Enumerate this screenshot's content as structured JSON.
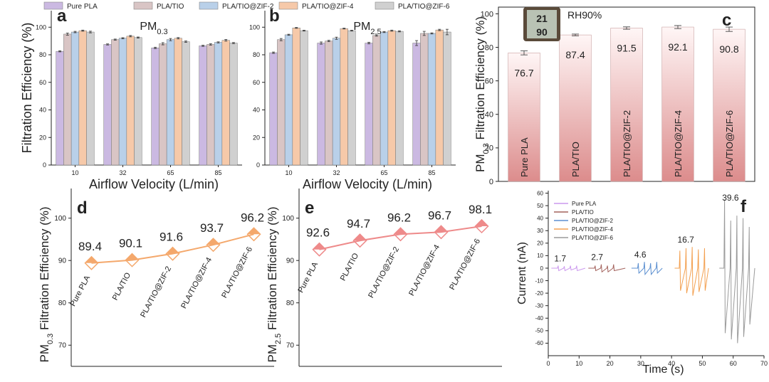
{
  "chart_data": [
    {
      "type": "bar",
      "panel": "a",
      "title": [
        "PM",
        "0.3"
      ],
      "ylabel": "Filtration Efficiency  (%)",
      "xlabel": "Airflow Velocity (L/min)",
      "categories": [
        "10",
        "32",
        "65",
        "85"
      ],
      "ylim": [
        0,
        112
      ],
      "yticks": [
        0,
        20,
        40,
        60,
        80,
        100
      ],
      "series": [
        {
          "name": "Pure PLA",
          "color": "#cbb9e2",
          "values": [
            82.5,
            87.5,
            85,
            86.5
          ],
          "errors": [
            0.4,
            0.4,
            0.5,
            0.4
          ]
        },
        {
          "name": "PLA/TIO",
          "color": "#d9c5c5",
          "values": [
            95,
            91,
            88,
            87.5
          ],
          "errors": [
            0.8,
            0.4,
            0.8,
            0.5
          ]
        },
        {
          "name": "PLA/TIO@ZIF-2",
          "color": "#b9d0e9",
          "values": [
            96.5,
            92,
            91,
            89
          ],
          "errors": [
            0.5,
            0.4,
            0.8,
            0.4
          ]
        },
        {
          "name": "PLA/TIO@ZIF-4",
          "color": "#f6c9a9",
          "values": [
            97.5,
            93.5,
            92,
            90.5
          ],
          "errors": [
            0.4,
            0.5,
            0.5,
            0.6
          ]
        },
        {
          "name": "PLA/TIO@ZIF-6",
          "color": "#d0d0d0",
          "values": [
            96.5,
            92.5,
            89.5,
            88.5
          ],
          "errors": [
            0.6,
            0.4,
            0.5,
            0.4
          ]
        }
      ]
    },
    {
      "type": "bar",
      "panel": "b",
      "title": [
        "PM",
        "2.5"
      ],
      "xlabel": "Airflow Velocity (L/min)",
      "categories": [
        "10",
        "32",
        "65",
        "85"
      ],
      "ylim": [
        0,
        112
      ],
      "yticks": [
        0,
        20,
        40,
        60,
        80,
        100
      ],
      "series": [
        {
          "color": "#cbb9e2",
          "values": [
            81.5,
            88.5,
            88.5,
            88.5
          ],
          "errors": [
            0.5,
            0.8,
            0.6,
            1.8
          ]
        },
        {
          "color": "#d9c5c5",
          "values": [
            91,
            90,
            94,
            95.5
          ],
          "errors": [
            0.8,
            0.5,
            0.5,
            1.5
          ]
        },
        {
          "color": "#b9d0e9",
          "values": [
            94.5,
            92,
            96.5,
            95.5
          ],
          "errors": [
            0.4,
            0.8,
            0.4,
            0.4
          ]
        },
        {
          "color": "#f6c9a9",
          "values": [
            99.5,
            99,
            97.5,
            98
          ],
          "errors": [
            0.3,
            0.3,
            0.4,
            0.5
          ]
        },
        {
          "color": "#d0d0d0",
          "values": [
            97.5,
            97.5,
            97,
            96.5
          ],
          "errors": [
            0.3,
            0.3,
            0.4,
            2
          ]
        }
      ]
    },
    {
      "type": "bar",
      "panel": "c",
      "annotation": "RH90%",
      "device_text": [
        "21",
        "90"
      ],
      "ylabel": [
        "PM",
        "0.3",
        " Filtration Efficiency (%)"
      ],
      "categories": [
        "Pure PLA",
        "PLA/TIO",
        "PLA/TIO@ZIF-2",
        "PLA/TIO@ZIF-4",
        "PLA/TIO@ZIF-6"
      ],
      "values": [
        76.7,
        87.4,
        91.5,
        92.1,
        90.8
      ],
      "errors": [
        1.2,
        0.5,
        0.7,
        0.9,
        1.3
      ],
      "color": "#dc8c8c",
      "ylim": [
        0,
        104
      ],
      "yticks": [
        0,
        20,
        40,
        60,
        80,
        100
      ]
    },
    {
      "type": "line",
      "panel": "d",
      "ylabel": [
        "PM",
        "0.3",
        " Filtration Efficiency  (%)"
      ],
      "categories": [
        "Pure PLA",
        "PLA/TIO",
        "PLA/TIO@ZIF-2",
        "PLA/TIO@ZIF-4",
        "PLA/TIO@ZIF-6"
      ],
      "values": [
        89.4,
        90.1,
        91.6,
        93.7,
        96.2
      ],
      "color": "#f4a86c",
      "ylim": [
        65,
        107
      ],
      "yticks": [
        70,
        80,
        90,
        100
      ]
    },
    {
      "type": "line",
      "panel": "e",
      "ylabel": [
        "PM",
        "2.5",
        " Filtration Efficiency (%)"
      ],
      "categories": [
        "Pure PLA",
        "PLA/TIO",
        "PLA/TIO@ZIF-2",
        "PLA/TIO@ZIF-4",
        "PLA/TIO@ZIF-6"
      ],
      "values": [
        92.6,
        94.7,
        96.2,
        96.7,
        98.1
      ],
      "color": "#ee8a8a",
      "ylim": [
        65,
        107
      ],
      "yticks": [
        70,
        80,
        90,
        100
      ]
    },
    {
      "type": "signal",
      "panel": "f",
      "ylabel": "Current (nA)",
      "xlabel": "Time (s)",
      "xlim": [
        0,
        70
      ],
      "xticks": [
        0,
        10,
        20,
        30,
        40,
        50,
        60,
        70
      ],
      "ylim": [
        -70,
        62
      ],
      "yticks": [
        -60,
        -50,
        -40,
        -30,
        -20,
        -10,
        0,
        10,
        20,
        30,
        40,
        50,
        60
      ],
      "series": [
        {
          "name": "Pure PLA",
          "color": "#cc99ee",
          "peak": 1.7,
          "x": [
            1,
            3,
            3.2,
            3.4,
            5,
            5.2,
            5.4,
            7,
            7.2,
            7.4,
            9,
            9.2,
            9.4,
            12
          ],
          "values": [
            0,
            0,
            2,
            -2,
            0,
            1.5,
            -2,
            0,
            2,
            -1.5,
            0,
            2,
            -2,
            0
          ]
        },
        {
          "name": "PLA/TIO",
          "color": "#a3625c",
          "peak": 2.7,
          "x": [
            13,
            15,
            15.2,
            15.4,
            17,
            17.2,
            17.4,
            19,
            19.2,
            19.4,
            21,
            21.2,
            21.4,
            25
          ],
          "values": [
            0,
            0,
            2,
            -2,
            0,
            3,
            -3,
            0,
            2,
            -3,
            0,
            3,
            -2,
            0
          ]
        },
        {
          "name": "PLA/TIO@ZIF-2",
          "color": "#5b8fd0",
          "peak": 4.6,
          "x": [
            27,
            29,
            29.2,
            29.4,
            31,
            31.2,
            31.4,
            33,
            33.2,
            33.4,
            35,
            35.2,
            35.4,
            37
          ],
          "values": [
            0,
            0,
            4,
            -4,
            0,
            5,
            -5,
            0,
            4,
            -5,
            0,
            5,
            -4,
            0
          ]
        },
        {
          "name": "PLA/TIO@ZIF-4",
          "color": "#f3a050",
          "peak": 16.7,
          "x": [
            41,
            42.5,
            42.7,
            42.9,
            44.5,
            44.7,
            44.9,
            46.5,
            46.7,
            46.9,
            48.5,
            48.7,
            48.9,
            50.5,
            50.7,
            50.9,
            52
          ],
          "values": [
            0,
            0,
            14,
            -18,
            0,
            16,
            -20,
            0,
            17,
            -22,
            0,
            15,
            -19,
            0,
            16,
            -18,
            0
          ]
        },
        {
          "name": "PLA/TIO@ZIF-6",
          "color": "#9a9a9a",
          "peak": 39.6,
          "x": [
            55.5,
            57,
            57.2,
            57.4,
            59,
            59.2,
            59.4,
            61,
            61.2,
            61.4,
            63,
            63.2,
            63.4,
            65,
            65.2,
            65.4,
            67
          ],
          "values": [
            0,
            0,
            55,
            -52,
            0,
            38,
            -57,
            0,
            42,
            -60,
            0,
            40,
            -55,
            0,
            33,
            -45,
            0
          ]
        }
      ]
    }
  ]
}
